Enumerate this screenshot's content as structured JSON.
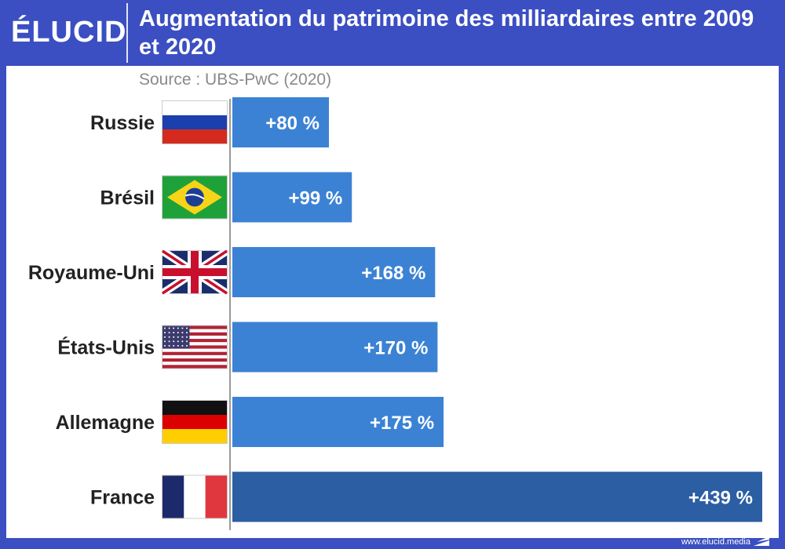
{
  "brand": {
    "logo": "ÉLUCID",
    "url": "www.elucid.media"
  },
  "colors": {
    "frame": "#3b4fc2",
    "bar": "#3c82d4",
    "bar_highlight": "#2b5ea3"
  },
  "chart_data": {
    "type": "bar",
    "orientation": "horizontal",
    "title": "Augmentation du patrimoine des milliardaires entre 2009 et 2020",
    "subtitle": "Source : UBS-PwC (2020)",
    "categories": [
      "Russie",
      "Brésil",
      "Royaume-Uni",
      "États-Unis",
      "Allemagne",
      "France"
    ],
    "flags": [
      "russia-flag-icon",
      "brazil-flag-icon",
      "uk-flag-icon",
      "usa-flag-icon",
      "germany-flag-icon",
      "france-flag-icon"
    ],
    "values": [
      80,
      99,
      168,
      170,
      175,
      439
    ],
    "value_labels": [
      "+80 %",
      "+99 %",
      "+168 %",
      "+170 %",
      "+175 %",
      "+439 %"
    ],
    "highlight": "France",
    "unit": "%",
    "xlim": [
      0,
      439
    ]
  }
}
